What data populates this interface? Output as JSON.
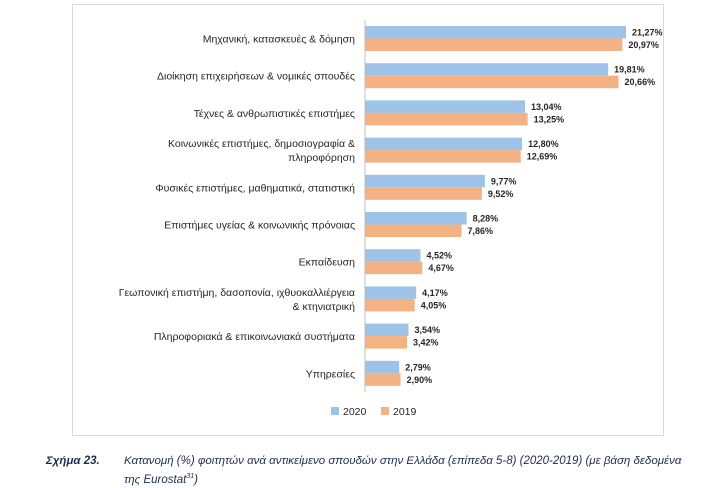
{
  "chart_data": {
    "type": "bar",
    "orientation": "horizontal",
    "categories": [
      [
        "Μηχανική, κατασκευές & δόμηση"
      ],
      [
        "Διοίκηση επιχειρήσεων & νομικές σπουδές"
      ],
      [
        "Τέχνες & ανθρωπιστικές επιστήμες"
      ],
      [
        "Κοινωνικές επιστήμες, δημοσιογραφία &",
        "πληροφόρηση"
      ],
      [
        "Φυσικές επιστήμες, μαθηματικά, στατιστική"
      ],
      [
        "Επιστήμες υγείας & κοινωνικής πρόνοιας"
      ],
      [
        "Εκπαίδευση"
      ],
      [
        "Γεωπονική επιστήμη, δασοπονία, ιχθυοκαλλιέργεια",
        "& κτηνιατρική"
      ],
      [
        "Πληροφοριακά & επικοινωνιακά συστήματα"
      ],
      [
        "Υπηρεσίες"
      ]
    ],
    "series": [
      {
        "name": "2020",
        "color": "#9dc3e6",
        "values": [
          21.27,
          19.81,
          13.04,
          12.8,
          9.77,
          8.28,
          4.52,
          4.17,
          3.54,
          2.79
        ],
        "labels": [
          "21,27%",
          "19,81%",
          "13,04%",
          "12,80%",
          "9,77%",
          "8,28%",
          "4,52%",
          "4,17%",
          "3,54%",
          "2,79%"
        ]
      },
      {
        "name": "2019",
        "color": "#f4b183",
        "values": [
          20.97,
          20.66,
          13.25,
          12.69,
          9.52,
          7.86,
          4.67,
          4.05,
          3.42,
          2.9
        ],
        "labels": [
          "20,97%",
          "20,66%",
          "13,25%",
          "12,69%",
          "9,52%",
          "7,86%",
          "4,67%",
          "4,05%",
          "3,42%",
          "2,90%"
        ]
      }
    ],
    "xlim": [
      0,
      22
    ],
    "grid": false,
    "legend_position": "bottom"
  },
  "caption": {
    "label": "Σχήμα 23.",
    "text": "Κατανομή (%) φοιτητών ανά αντικείμενο σπουδών στην Ελλάδα (επίπεδα 5-8) (2020-2019) (με βάση δεδομένα της Eurostat",
    "footnote": "31",
    "close": ")"
  }
}
